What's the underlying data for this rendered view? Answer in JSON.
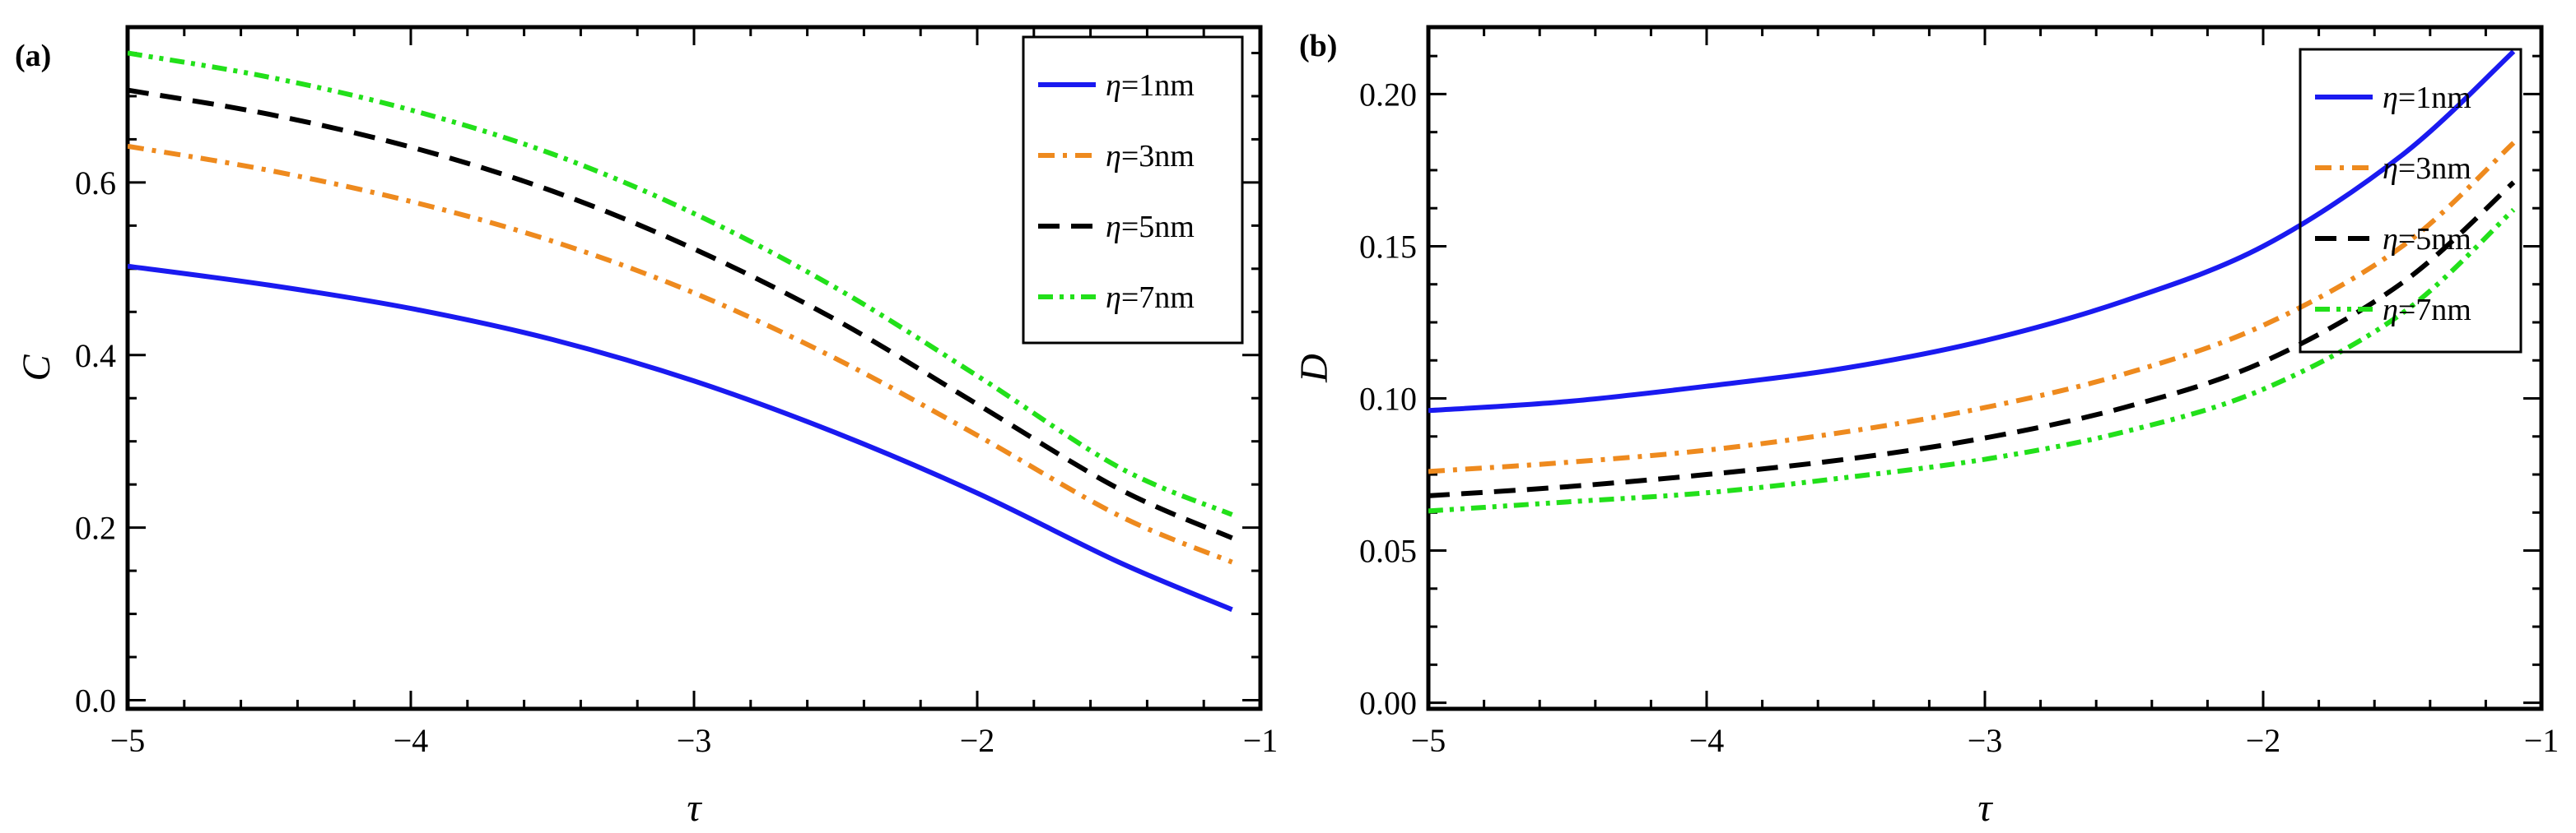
{
  "figure": {
    "description_free": true
  },
  "colors": {
    "eta1": "#1a1af0",
    "eta3": "#ee8a1e",
    "eta5": "#000000",
    "eta7": "#22e01a"
  },
  "chart_data": [
    {
      "type": "line",
      "panel_label": "(a)",
      "xlabel": "τ",
      "ylabel": "C",
      "xlim": [
        -5,
        -1
      ],
      "ylim": [
        -0.01,
        0.78
      ],
      "xticks": [
        -5,
        -4,
        -3,
        -2,
        -1
      ],
      "xtick_labels": [
        "−5",
        "−4",
        "−3",
        "−2",
        "−1"
      ],
      "yticks": [
        0.0,
        0.2,
        0.4,
        0.6
      ],
      "ytick_labels": [
        "0.0",
        "0.2",
        "0.4",
        "0.6"
      ],
      "legend_position": "top-right",
      "x": [
        -5.0,
        -4.5,
        -4.0,
        -3.5,
        -3.0,
        -2.5,
        -2.0,
        -1.5,
        -1.1
      ],
      "series": [
        {
          "name": "η=1nm",
          "eta": "η",
          "value": "=1nm",
          "color_key": "eta1",
          "dash": "solid",
          "values": [
            0.503,
            0.481,
            0.454,
            0.418,
            0.37,
            0.31,
            0.24,
            0.16,
            0.105
          ]
        },
        {
          "name": "η=3nm",
          "eta": "η",
          "value": "=3nm",
          "color_key": "eta3",
          "dash": "dashdot",
          "values": [
            0.642,
            0.614,
            0.578,
            0.532,
            0.472,
            0.396,
            0.307,
            0.214,
            0.16
          ]
        },
        {
          "name": "η=5nm",
          "eta": "η",
          "value": "=5nm",
          "color_key": "eta5",
          "dash": "dashed",
          "values": [
            0.707,
            0.679,
            0.641,
            0.59,
            0.523,
            0.441,
            0.343,
            0.245,
            0.188
          ]
        },
        {
          "name": "η=7nm",
          "eta": "η",
          "value": "=7nm",
          "color_key": "eta7",
          "dash": "dashdotdot",
          "values": [
            0.75,
            0.722,
            0.684,
            0.633,
            0.564,
            0.478,
            0.376,
            0.27,
            0.215
          ]
        }
      ]
    },
    {
      "type": "line",
      "panel_label": "(b)",
      "xlabel": "τ",
      "ylabel": "D",
      "xlim": [
        -5,
        -1
      ],
      "ylim": [
        -0.002,
        0.222
      ],
      "xticks": [
        -5,
        -4,
        -3,
        -2,
        -1
      ],
      "xtick_labels": [
        "−5",
        "−4",
        "−3",
        "−2",
        "−1"
      ],
      "yticks": [
        0.0,
        0.05,
        0.1,
        0.15,
        0.2
      ],
      "ytick_labels": [
        "0.00",
        "0.05",
        "0.10",
        "0.15",
        "0.20"
      ],
      "legend_position": "top-right",
      "x": [
        -5.0,
        -4.5,
        -4.0,
        -3.5,
        -3.0,
        -2.5,
        -2.0,
        -1.5,
        -1.1
      ],
      "series": [
        {
          "name": "η=1nm",
          "eta": "η",
          "value": "=1nm",
          "color_key": "eta1",
          "dash": "solid",
          "values": [
            0.096,
            0.099,
            0.104,
            0.11,
            0.119,
            0.132,
            0.15,
            0.18,
            0.214
          ]
        },
        {
          "name": "η=3nm",
          "eta": "η",
          "value": "=3nm",
          "color_key": "eta3",
          "dash": "dashdot",
          "values": [
            0.076,
            0.079,
            0.083,
            0.089,
            0.097,
            0.108,
            0.124,
            0.15,
            0.184
          ]
        },
        {
          "name": "η=5nm",
          "eta": "η",
          "value": "=5nm",
          "color_key": "eta5",
          "dash": "dashed",
          "values": [
            0.068,
            0.071,
            0.075,
            0.08,
            0.087,
            0.097,
            0.112,
            0.138,
            0.171
          ]
        },
        {
          "name": "η=7nm",
          "eta": "η",
          "value": "=7nm",
          "color_key": "eta7",
          "dash": "dashdotdot",
          "values": [
            0.063,
            0.066,
            0.069,
            0.074,
            0.08,
            0.089,
            0.103,
            0.128,
            0.162
          ]
        }
      ]
    }
  ]
}
